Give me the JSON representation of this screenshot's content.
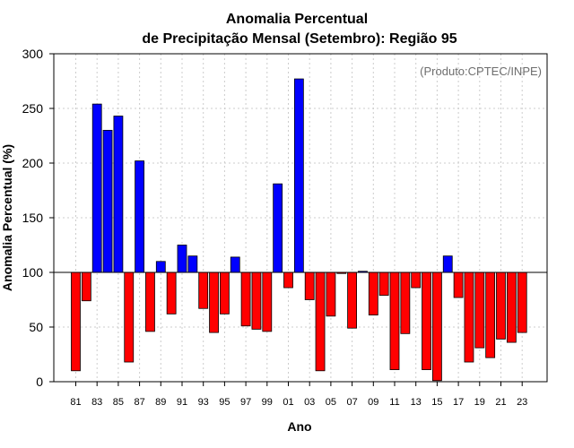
{
  "chart_data": {
    "type": "bar",
    "title_line1": "Anomalia Percentual",
    "title_line2": "de Precipitação Mensal (Setembro): Região 95",
    "xlabel": "Ano",
    "ylabel": "Anomalia Percentual (%)",
    "credit": "(Produto:CPTEC/INPE)",
    "ylim": [
      0,
      300
    ],
    "yticks": [
      0,
      50,
      100,
      150,
      200,
      250,
      300
    ],
    "baseline": 100,
    "grid": true,
    "colors": {
      "above": "#0000ff",
      "below": "#ff0000",
      "edge": "#000000",
      "grid": "#cccccc"
    },
    "categories": [
      "81",
      "82",
      "83",
      "84",
      "85",
      "86",
      "87",
      "88",
      "89",
      "90",
      "91",
      "92",
      "93",
      "94",
      "95",
      "96",
      "97",
      "98",
      "99",
      "00",
      "01",
      "02",
      "03",
      "04",
      "05",
      "06",
      "07",
      "08",
      "09",
      "10",
      "11",
      "12",
      "13",
      "14",
      "15",
      "16",
      "17",
      "18",
      "19",
      "20",
      "21",
      "22",
      "23"
    ],
    "tick_labels": [
      "81",
      "83",
      "85",
      "87",
      "89",
      "91",
      "93",
      "95",
      "97",
      "99",
      "01",
      "03",
      "05",
      "07",
      "09",
      "11",
      "13",
      "15",
      "17",
      "19",
      "21",
      "23"
    ],
    "values": [
      10,
      74,
      254,
      230,
      243,
      18,
      202,
      46,
      110,
      62,
      125,
      115,
      67,
      45,
      62,
      114,
      51,
      48,
      46,
      181,
      86,
      277,
      75,
      10,
      60,
      99,
      49,
      101,
      61,
      79,
      11,
      44,
      86,
      11,
      1,
      115,
      77,
      18,
      31,
      22,
      39,
      36,
      45
    ]
  }
}
